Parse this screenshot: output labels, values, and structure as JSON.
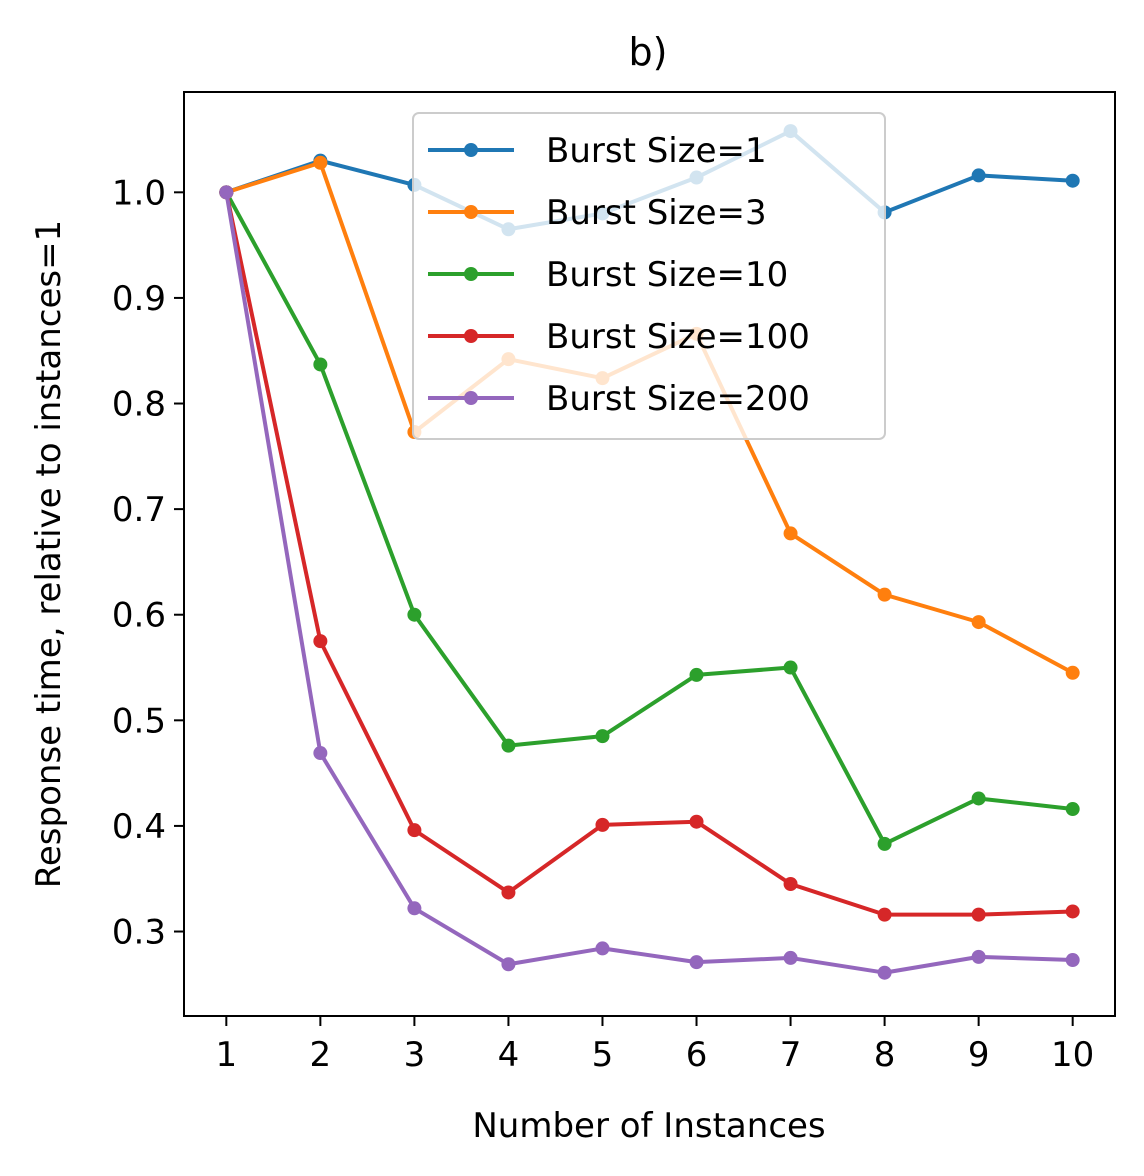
{
  "chart_data": {
    "type": "line",
    "title": "b)",
    "xlabel": "Number of Instances",
    "ylabel": "Response time, relative to instances=1",
    "x": [
      1,
      2,
      3,
      4,
      5,
      6,
      7,
      8,
      9,
      10
    ],
    "xlim": [
      0.55,
      10.45
    ],
    "ylim": [
      0.22,
      1.095
    ],
    "yticks": [
      "0.3",
      "0.4",
      "0.5",
      "0.6",
      "0.7",
      "0.8",
      "0.9",
      "1.0"
    ],
    "grid": false,
    "legend": "top-center",
    "series": [
      {
        "name": "Burst Size=1",
        "color": "#1f77b4",
        "values": [
          1.0,
          1.03,
          1.007,
          0.965,
          0.98,
          1.014,
          1.058,
          0.981,
          1.016,
          1.011
        ]
      },
      {
        "name": "Burst Size=3",
        "color": "#ff7f0e",
        "values": [
          1.0,
          1.028,
          0.773,
          0.842,
          0.824,
          0.866,
          0.677,
          0.619,
          0.593,
          0.545
        ]
      },
      {
        "name": "Burst Size=10",
        "color": "#2ca02c",
        "values": [
          1.0,
          0.837,
          0.6,
          0.476,
          0.485,
          0.543,
          0.55,
          0.383,
          0.426,
          0.416
        ]
      },
      {
        "name": "Burst Size=100",
        "color": "#d62728",
        "values": [
          1.0,
          0.575,
          0.396,
          0.337,
          0.401,
          0.404,
          0.345,
          0.316,
          0.316,
          0.319
        ]
      },
      {
        "name": "Burst Size=200",
        "color": "#9467bd",
        "values": [
          1.0,
          0.469,
          0.322,
          0.269,
          0.284,
          0.271,
          0.275,
          0.261,
          0.276,
          0.273
        ]
      }
    ]
  }
}
